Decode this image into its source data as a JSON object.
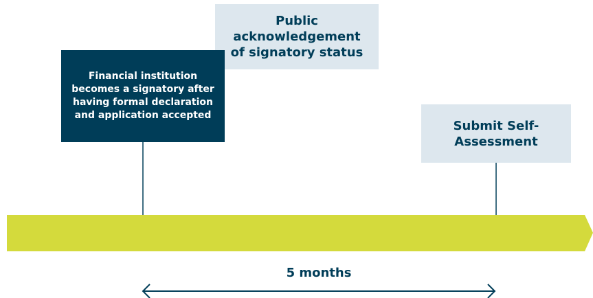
{
  "milestones": [
    {
      "label": "Financial institution becomes a signatory after having formal declaration and application accepted"
    },
    {
      "label": "Public acknowledgement of signatory status"
    },
    {
      "label": "Submit Self-Assessment"
    }
  ],
  "duration": "5 months"
}
